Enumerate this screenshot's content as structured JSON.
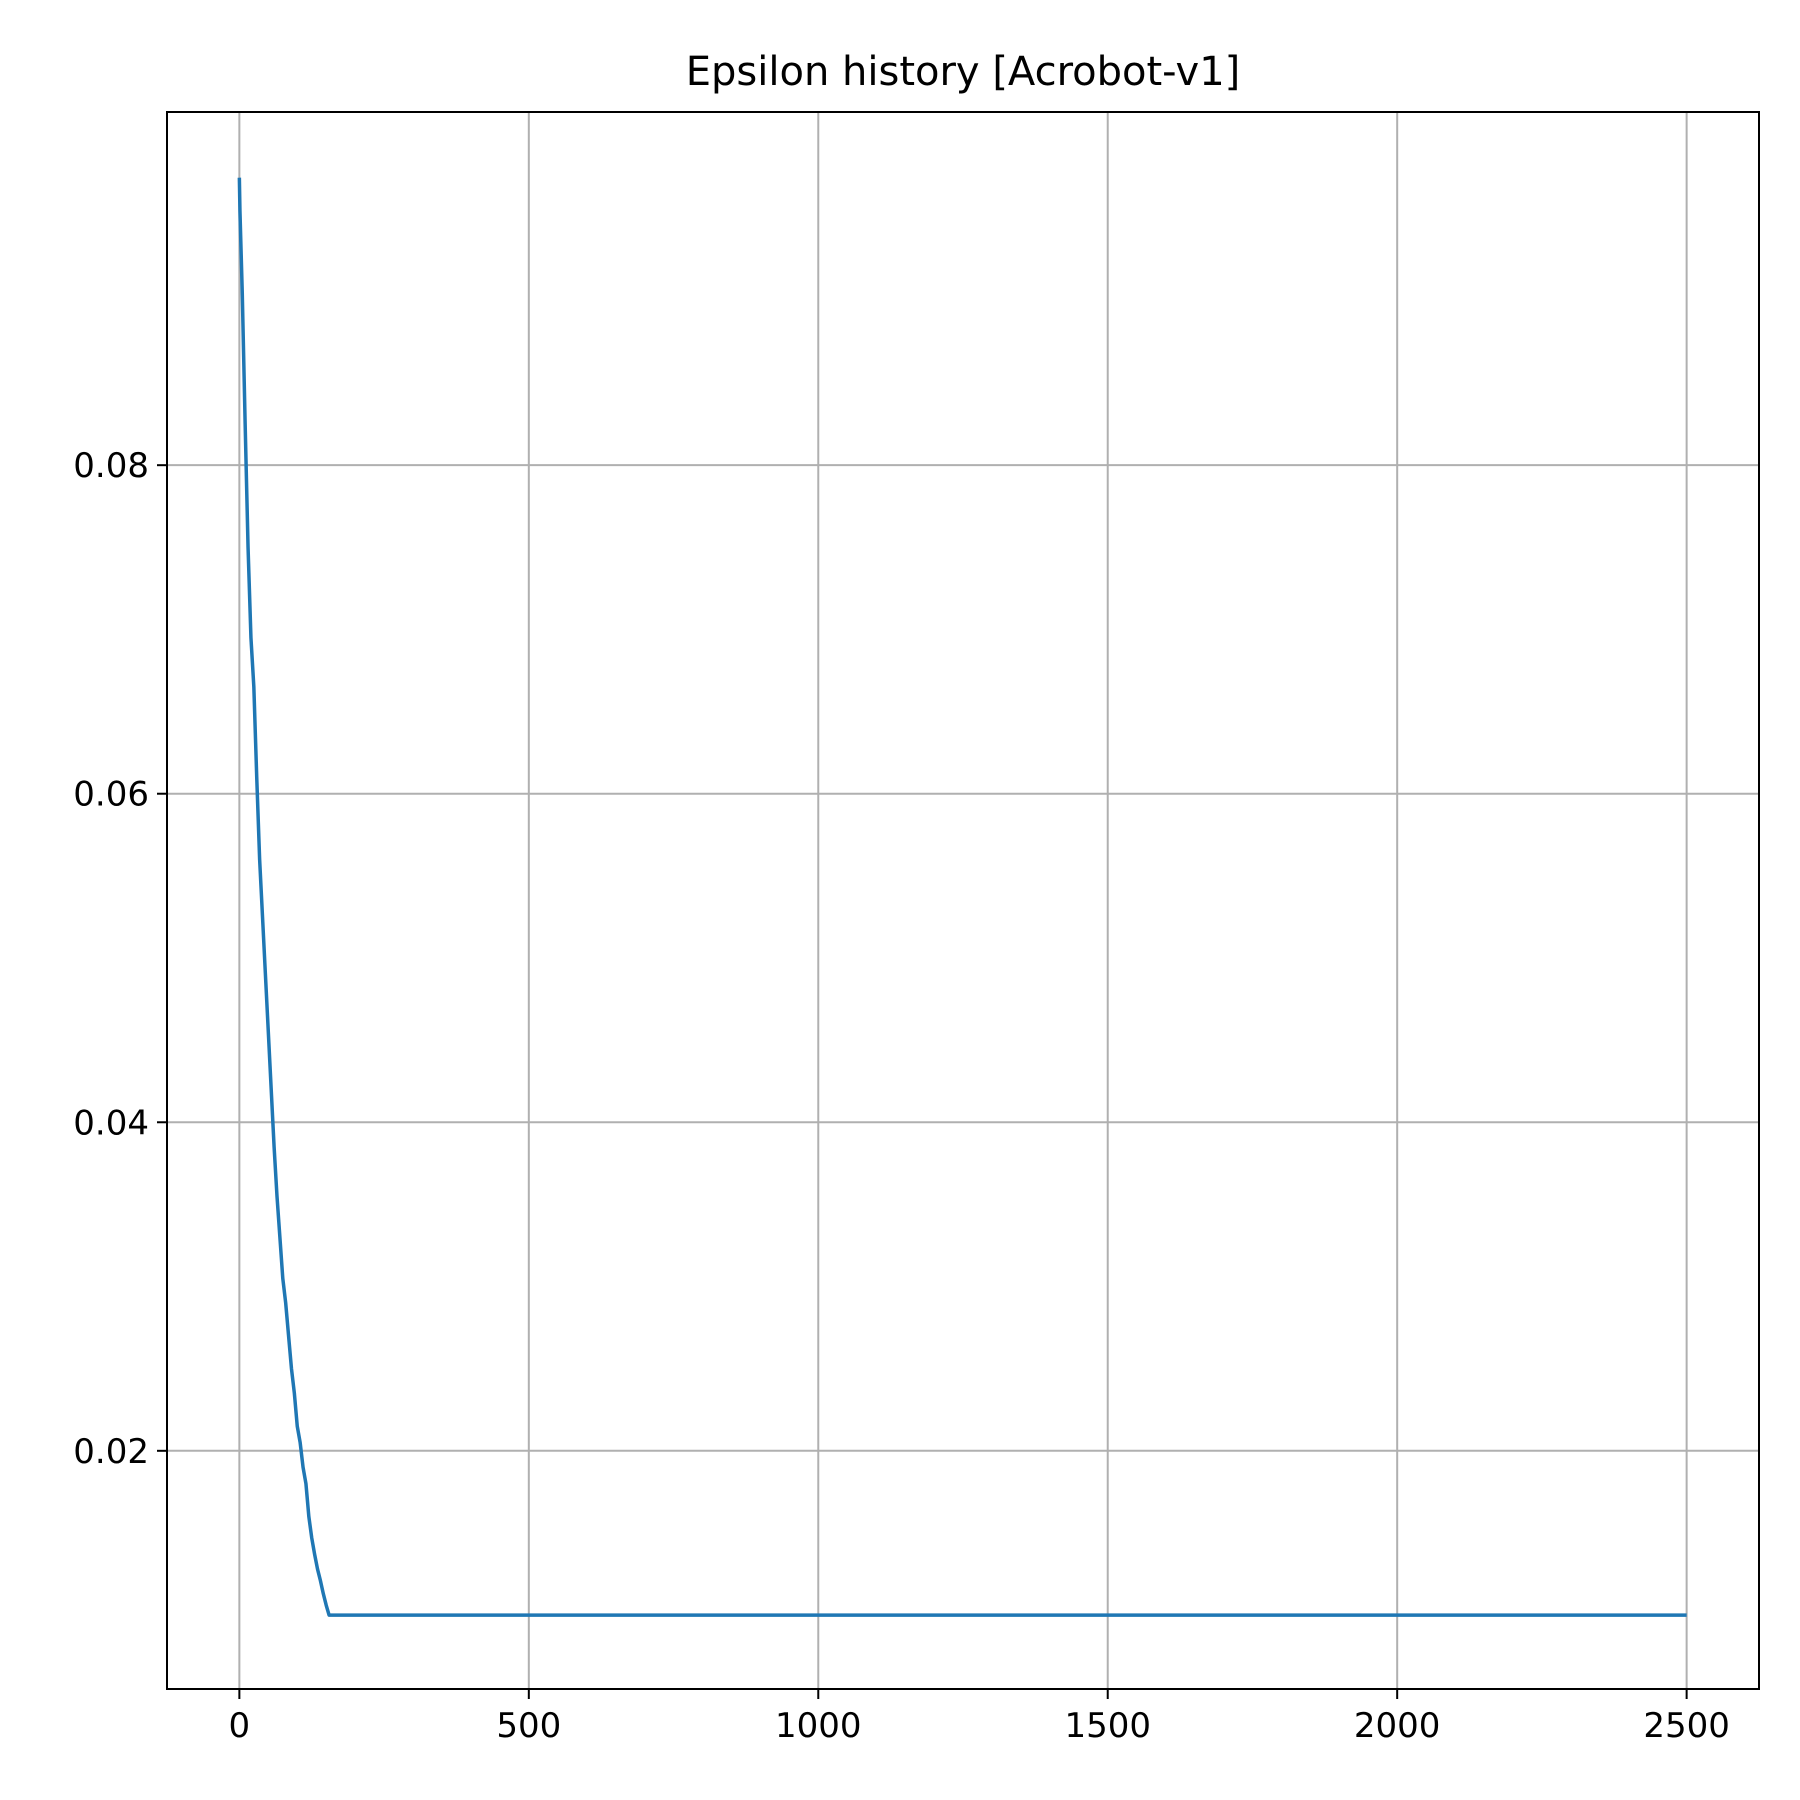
{
  "chart_data": {
    "type": "line",
    "title": "Epsilon history [Acrobot-v1]",
    "xlabel": "",
    "ylabel": "",
    "xlim": [
      -125,
      2625
    ],
    "ylim": [
      0.0055,
      0.1015
    ],
    "grid": true,
    "x_ticks": [
      0,
      500,
      1000,
      1500,
      2000,
      2500
    ],
    "x_tick_labels": [
      "0",
      "500",
      "1000",
      "1500",
      "2000",
      "2500"
    ],
    "y_ticks": [
      0.02,
      0.04,
      0.06,
      0.08
    ],
    "y_tick_labels": [
      "0.02",
      "0.04",
      "0.06",
      "0.08"
    ],
    "series": [
      {
        "color": "#1f77b4",
        "x": [
          0,
          1,
          5,
          10,
          15,
          20,
          25,
          30,
          35,
          40,
          45,
          50,
          55,
          60,
          65,
          70,
          75,
          80,
          85,
          90,
          95,
          100,
          105,
          110,
          115,
          117,
          120,
          125,
          130,
          135,
          140,
          145,
          150,
          155,
          160,
          200,
          500,
          1000,
          1500,
          2000,
          2500
        ],
        "y": [
          0.0975,
          0.0955,
          0.0905,
          0.0825,
          0.075,
          0.0695,
          0.0665,
          0.061,
          0.056,
          0.0525,
          0.049,
          0.0455,
          0.042,
          0.0385,
          0.0355,
          0.033,
          0.0305,
          0.029,
          0.027,
          0.025,
          0.0235,
          0.0215,
          0.0205,
          0.019,
          0.018,
          0.0172,
          0.016,
          0.0147,
          0.0137,
          0.0128,
          0.0121,
          0.0113,
          0.0106,
          0.01,
          0.01,
          0.01,
          0.01,
          0.01,
          0.01,
          0.01,
          0.01
        ]
      }
    ]
  }
}
